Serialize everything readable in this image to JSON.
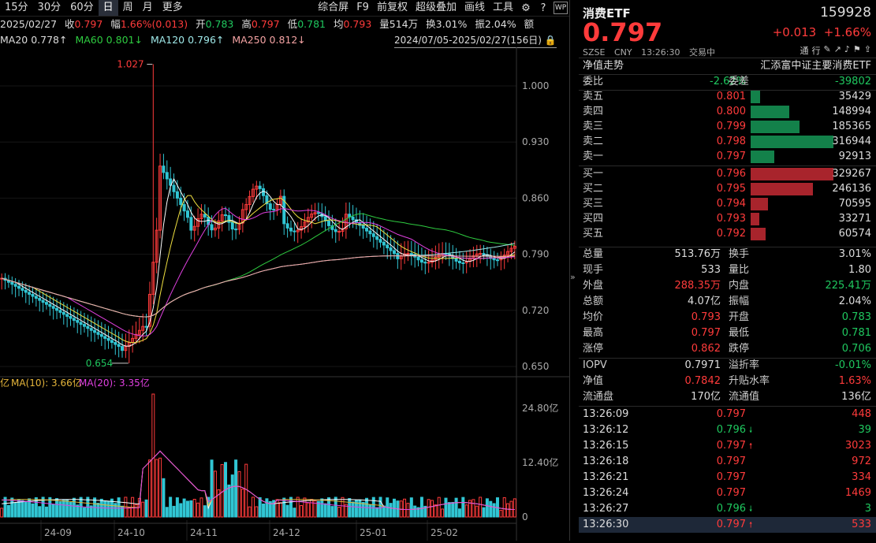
{
  "toolbar": {
    "periods": [
      "15分",
      "30分",
      "60分",
      "日",
      "周",
      "月",
      "更多"
    ],
    "active": "日",
    "right_items": [
      "综合屏",
      "F9",
      "前复权",
      "超级叠加",
      "画线",
      "工具"
    ]
  },
  "quote": {
    "date": "2025/02/27",
    "close_label": "收",
    "close": "0.797",
    "amp_label": "幅",
    "amp": "1.66%(0.013)",
    "open_label": "开",
    "open": "0.783",
    "high_label": "高",
    "high": "0.797",
    "low_label": "低",
    "low": "0.781",
    "avg_label": "均",
    "avg": "0.793",
    "vol_label": "量",
    "vol": "514万",
    "turn_label": "换",
    "turn": "3.01%",
    "swing_label": "振",
    "swing": "2.04%",
    "amount_label": "额"
  },
  "ma": {
    "ma20": "MA20 0.778↑",
    "ma60": "MA60 0.801↓",
    "ma120": "MA120 0.796↑",
    "ma250": "MA250 0.812↓"
  },
  "range": "2024/07/05-2025/02/27(156日)",
  "chart": {
    "price_ticks": [
      "1.000",
      "0.930",
      "0.860",
      "0.790",
      "0.720",
      "0.650"
    ],
    "high_label": "1.027",
    "low_label": "0.654",
    "vol_ma_line": {
      "prefix": "亿",
      "ma10": "MA(10): 3.66亿",
      "ma20": "MA(20): 3.35亿"
    },
    "vol_ticks": [
      "24.80亿",
      "12.40亿",
      "0"
    ],
    "x_labels": [
      "24-09",
      "24-10",
      "24-11",
      "24-12",
      "25-01",
      "25-02"
    ]
  },
  "panel": {
    "title": "消费ETF",
    "code": "159928",
    "price": "0.797",
    "change": "+0.013",
    "change_pct": "+1.66%",
    "meta": [
      "SZSE",
      "CNY",
      "13:26:30",
      "交易中"
    ],
    "nav_trend": "净值走势",
    "index_name": "汇添富中证主要消费ETF",
    "webi_label": "委比",
    "webi": "-2.62%",
    "weicha_label": "委差",
    "weicha": "-39802",
    "asks": [
      {
        "label": "卖五",
        "price": "0.801",
        "vol": "35429",
        "ratio": 0.11
      },
      {
        "label": "卖四",
        "price": "0.800",
        "vol": "148994",
        "ratio": 0.47
      },
      {
        "label": "卖三",
        "price": "0.799",
        "vol": "185365",
        "ratio": 0.59
      },
      {
        "label": "卖二",
        "price": "0.798",
        "vol": "316944",
        "ratio": 1.0
      },
      {
        "label": "卖一",
        "price": "0.797",
        "vol": "92913",
        "ratio": 0.29
      }
    ],
    "bids": [
      {
        "label": "买一",
        "price": "0.796",
        "vol": "329267",
        "ratio": 1.0
      },
      {
        "label": "买二",
        "price": "0.795",
        "vol": "246136",
        "ratio": 0.75
      },
      {
        "label": "买三",
        "price": "0.794",
        "vol": "70595",
        "ratio": 0.21
      },
      {
        "label": "买四",
        "price": "0.793",
        "vol": "33271",
        "ratio": 0.1
      },
      {
        "label": "买五",
        "price": "0.792",
        "vol": "60574",
        "ratio": 0.18
      }
    ],
    "stats": [
      {
        "k1": "总量",
        "v1": "513.76万",
        "c1": "white",
        "k2": "换手",
        "v2": "3.01%",
        "c2": "white"
      },
      {
        "k1": "现手",
        "v1": "533",
        "c1": "white",
        "k2": "量比",
        "v2": "1.80",
        "c2": "white"
      },
      {
        "k1": "外盘",
        "v1": "288.35万",
        "c1": "red",
        "k2": "内盘",
        "v2": "225.41万",
        "c2": "green"
      },
      {
        "k1": "总额",
        "v1": "4.07亿",
        "c1": "white",
        "k2": "振幅",
        "v2": "2.04%",
        "c2": "white"
      },
      {
        "k1": "均价",
        "v1": "0.793",
        "c1": "red",
        "k2": "开盘",
        "v2": "0.783",
        "c2": "green"
      },
      {
        "k1": "最高",
        "v1": "0.797",
        "c1": "red",
        "k2": "最低",
        "v2": "0.781",
        "c2": "green"
      },
      {
        "k1": "涨停",
        "v1": "0.862",
        "c1": "red",
        "k2": "跌停",
        "v2": "0.706",
        "c2": "green"
      }
    ],
    "stats2": [
      {
        "k1": "IOPV",
        "v1": "0.7971",
        "c1": "white",
        "k2": "溢折率",
        "v2": "-0.01%",
        "c2": "green"
      },
      {
        "k1": "净值",
        "v1": "0.7842",
        "c1": "red",
        "k2": "升贴水率",
        "v2": "1.63%",
        "c2": "red"
      },
      {
        "k1": "流通盘",
        "v1": "170亿",
        "c1": "white",
        "k2": "流通值",
        "v2": "136亿",
        "c2": "white"
      }
    ],
    "ticks": [
      {
        "time": "13:26:09",
        "price": "0.797",
        "arrow": "",
        "vol": "448"
      },
      {
        "time": "13:26:12",
        "price": "0.796",
        "arrow": "down",
        "vol": "39"
      },
      {
        "time": "13:26:15",
        "price": "0.797",
        "arrow": "up",
        "vol": "3023"
      },
      {
        "time": "13:26:18",
        "price": "0.797",
        "arrow": "",
        "vol": "972"
      },
      {
        "time": "13:26:21",
        "price": "0.797",
        "arrow": "",
        "vol": "334"
      },
      {
        "time": "13:26:24",
        "price": "0.797",
        "arrow": "",
        "vol": "1469"
      },
      {
        "time": "13:26:27",
        "price": "0.796",
        "arrow": "down",
        "vol": "3"
      },
      {
        "time": "13:26:30",
        "price": "0.797",
        "arrow": "up",
        "vol": "533"
      }
    ]
  },
  "colors": {
    "up": "#ff3b3b",
    "down": "#1fc85f",
    "candle_up": "#ff3b3b",
    "candle_down": "#31c6d4"
  }
}
